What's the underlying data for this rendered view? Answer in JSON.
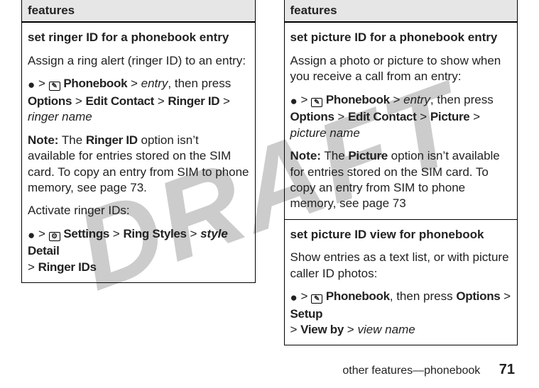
{
  "watermark": "DRAFT",
  "left": {
    "header": "features",
    "title": "set ringer ID for a phonebook entry",
    "p1": "Assign a ring alert (ringer ID) to an entry:",
    "nav": {
      "key_glyph": "●",
      "gt1": " > ",
      "book_icon_label": "phonebook-icon",
      "phonebook": "Phonebook",
      "gt2": " > ",
      "entry": "entry",
      "then": ", then press ",
      "options": "Options",
      "gt3": " > ",
      "edit": "Edit Contact",
      "gt4": " > ",
      "ringerid": "Ringer ID",
      "gt5": " > ",
      "ringer_name": "ringer name"
    },
    "note_label": "Note:",
    "note_a": " The ",
    "note_ringerid": "Ringer ID",
    "note_b": " option isn’t available for entries stored on the SIM card. To copy an entry from SIM to phone memory, see page 73.",
    "activate": "Activate ringer IDs:",
    "nav2": {
      "key_glyph": "●",
      "gt1": " > ",
      "gear_icon_label": "settings-icon",
      "settings": "Settings",
      "gt2": " > ",
      "ringstyles": "Ring Styles",
      "gt3": " > ",
      "style": "style",
      "detail": " Detail",
      "gt4": " > ",
      "ringerids": "Ringer IDs"
    }
  },
  "right": {
    "header": "features",
    "cell1": {
      "title": "set picture ID for a phonebook entry",
      "p1": "Assign a photo or picture to show when you receive a call from an entry:",
      "nav": {
        "key_glyph": "●",
        "gt1": " > ",
        "book_icon_label": "phonebook-icon",
        "phonebook": "Phonebook",
        "gt2": " > ",
        "entry": "entry",
        "then": ", then press ",
        "options": "Options",
        "gt3": " > ",
        "edit": "Edit Contact",
        "gt4": " > ",
        "picture": "Picture",
        "gt5": " > ",
        "picture_name": "picture name"
      },
      "note_label": "Note:",
      "note_a": " The ",
      "note_picture": "Picture",
      "note_b": " option isn’t available for entries stored on the SIM card. To copy an entry from SIM to phone memory, see page 73"
    },
    "cell2": {
      "title": "set picture ID view for phonebook",
      "p1": "Show entries as a text list, or with picture caller ID photos:",
      "nav": {
        "key_glyph": "●",
        "gt1": " > ",
        "book_icon_label": "phonebook-icon",
        "phonebook": "Phonebook",
        "then": ", then press ",
        "options": "Options",
        "gt2": " > ",
        "setup": "Setup",
        "gt3": " > ",
        "viewby": "View by",
        "gt4": " > ",
        "view_name": "view name"
      }
    }
  },
  "footer": {
    "section": "other features—phonebook",
    "page": "71"
  },
  "icons": {
    "book": "✎",
    "gear": "⚙"
  }
}
